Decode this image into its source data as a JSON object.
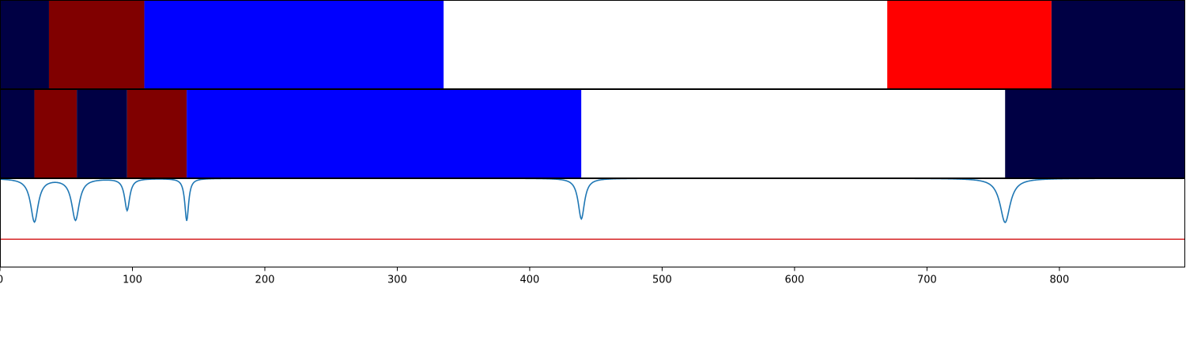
{
  "chart_data": {
    "type": "segmentation-timeline",
    "xlim": [
      0,
      895
    ],
    "x_ticks": [
      0,
      100,
      200,
      300,
      400,
      500,
      600,
      700,
      800
    ],
    "palette": {
      "navy": "#000044",
      "maroon": "#800000",
      "blue": "#0000ff",
      "white": "#ffffff",
      "red": "#ff0000"
    },
    "bands": [
      {
        "segments": [
          {
            "start": 0,
            "end": 37,
            "color": "navy"
          },
          {
            "start": 37,
            "end": 109,
            "color": "maroon"
          },
          {
            "start": 109,
            "end": 335,
            "color": "blue"
          },
          {
            "start": 335,
            "end": 670,
            "color": "white"
          },
          {
            "start": 670,
            "end": 794,
            "color": "red"
          },
          {
            "start": 794,
            "end": 895,
            "color": "navy"
          }
        ]
      },
      {
        "segments": [
          {
            "start": 0,
            "end": 26,
            "color": "navy"
          },
          {
            "start": 26,
            "end": 58,
            "color": "maroon"
          },
          {
            "start": 58,
            "end": 96,
            "color": "navy"
          },
          {
            "start": 96,
            "end": 141,
            "color": "maroon"
          },
          {
            "start": 141,
            "end": 439,
            "color": "blue"
          },
          {
            "start": 439,
            "end": 759,
            "color": "white"
          },
          {
            "start": 759,
            "end": 895,
            "color": "navy"
          }
        ]
      }
    ],
    "signal": {
      "ylim": [
        0,
        1
      ],
      "baseline": 1.0,
      "line_color": "#1f77b4",
      "threshold": 0.31,
      "threshold_color": "#d62728",
      "dips": [
        {
          "x": 26,
          "min": 0.51,
          "width": 6
        },
        {
          "x": 57,
          "min": 0.53,
          "width": 6
        },
        {
          "x": 96,
          "min": 0.64,
          "width": 4
        },
        {
          "x": 141,
          "min": 0.52,
          "width": 3
        },
        {
          "x": 439,
          "min": 0.54,
          "width": 5
        },
        {
          "x": 759,
          "min": 0.5,
          "width": 8
        }
      ]
    }
  }
}
